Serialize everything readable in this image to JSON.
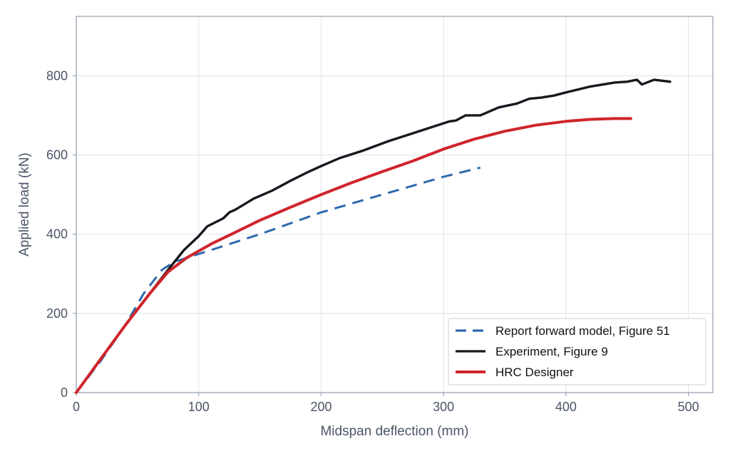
{
  "chart_data": {
    "type": "line",
    "xlabel": "Midspan deflection (mm)",
    "ylabel": "Applied load (kN)",
    "xlim": [
      0,
      520
    ],
    "ylim": [
      0,
      950
    ],
    "xticks": [
      0,
      100,
      200,
      300,
      400,
      500
    ],
    "yticks": [
      0,
      200,
      400,
      600,
      800
    ],
    "grid": true,
    "legend_position": "bottom-right",
    "series": [
      {
        "name": "Report forward model, Figure 51",
        "color": "#2e6aad",
        "style": "dashed",
        "points": [
          [
            0,
            0
          ],
          [
            20,
            80
          ],
          [
            40,
            170
          ],
          [
            55,
            250
          ],
          [
            70,
            310
          ],
          [
            80,
            330
          ],
          [
            100,
            350
          ],
          [
            150,
            400
          ],
          [
            200,
            455
          ],
          [
            250,
            500
          ],
          [
            300,
            545
          ],
          [
            330,
            568
          ]
        ]
      },
      {
        "name": "Experiment, Figure 9",
        "color": "#16191f",
        "style": "solid",
        "points": [
          [
            0,
            0
          ],
          [
            20,
            85
          ],
          [
            40,
            170
          ],
          [
            60,
            250
          ],
          [
            75,
            310
          ],
          [
            88,
            360
          ],
          [
            100,
            395
          ],
          [
            107,
            420
          ],
          [
            120,
            440
          ],
          [
            125,
            455
          ],
          [
            130,
            462
          ],
          [
            145,
            490
          ],
          [
            160,
            510
          ],
          [
            175,
            535
          ],
          [
            190,
            558
          ],
          [
            200,
            572
          ],
          [
            215,
            592
          ],
          [
            235,
            612
          ],
          [
            255,
            635
          ],
          [
            275,
            655
          ],
          [
            290,
            670
          ],
          [
            305,
            685
          ],
          [
            310,
            687
          ],
          [
            318,
            700
          ],
          [
            330,
            700
          ],
          [
            345,
            720
          ],
          [
            360,
            730
          ],
          [
            370,
            742
          ],
          [
            380,
            745
          ],
          [
            390,
            750
          ],
          [
            400,
            758
          ],
          [
            420,
            773
          ],
          [
            440,
            783
          ],
          [
            450,
            785
          ],
          [
            458,
            790
          ],
          [
            462,
            778
          ],
          [
            472,
            790
          ],
          [
            485,
            785
          ]
        ]
      },
      {
        "name": "HRC Designer",
        "color": "#d0242b",
        "style": "solid",
        "points": [
          [
            0,
            0
          ],
          [
            20,
            85
          ],
          [
            40,
            170
          ],
          [
            60,
            250
          ],
          [
            75,
            305
          ],
          [
            90,
            340
          ],
          [
            110,
            375
          ],
          [
            130,
            405
          ],
          [
            150,
            435
          ],
          [
            175,
            468
          ],
          [
            200,
            500
          ],
          [
            225,
            530
          ],
          [
            250,
            558
          ],
          [
            275,
            585
          ],
          [
            300,
            615
          ],
          [
            325,
            640
          ],
          [
            350,
            660
          ],
          [
            375,
            675
          ],
          [
            400,
            685
          ],
          [
            420,
            690
          ],
          [
            440,
            692
          ],
          [
            453,
            692
          ]
        ]
      }
    ]
  }
}
